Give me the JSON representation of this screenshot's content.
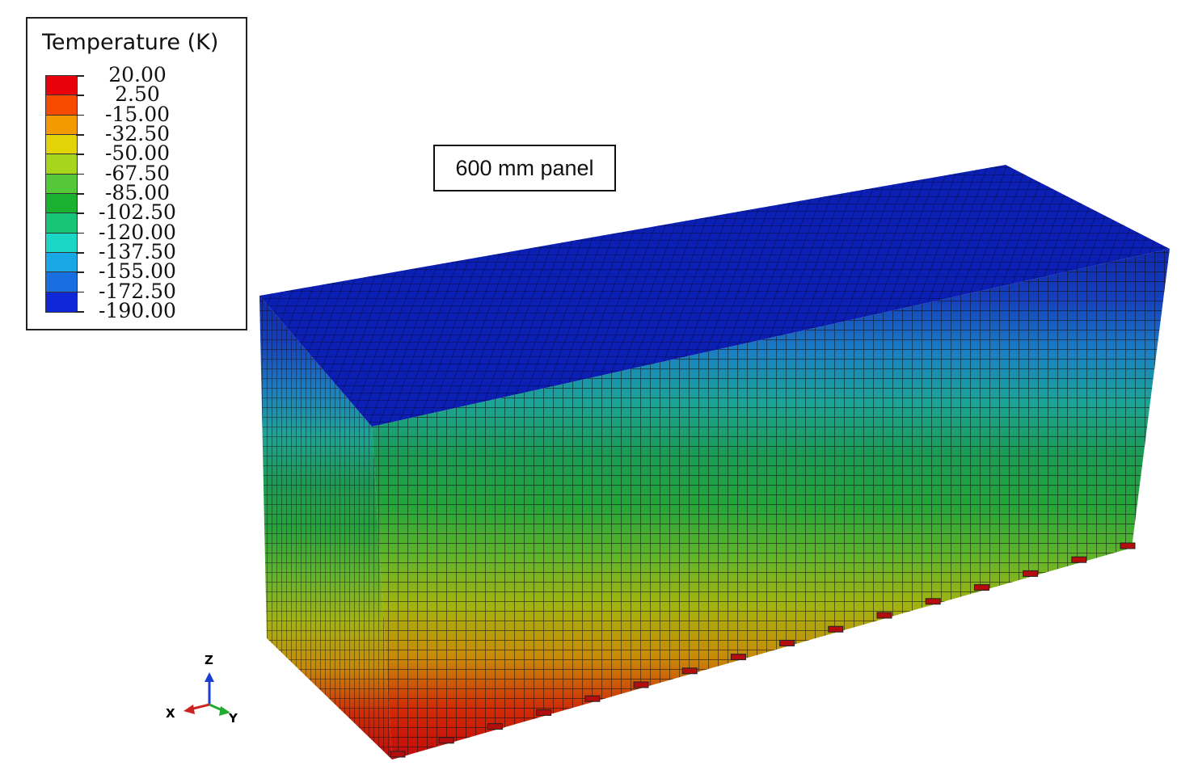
{
  "legend": {
    "title": "Temperature (K)",
    "values": [
      "20.00",
      "2.50",
      "-15.00",
      "-32.50",
      "-50.00",
      "-67.50",
      "-85.00",
      "-102.50",
      "-120.00",
      "-137.50",
      "-155.00",
      "-172.50",
      "-190.00"
    ],
    "colors": [
      "#e8000b",
      "#f54a00",
      "#f29a00",
      "#e3d40a",
      "#a7d51c",
      "#55c83a",
      "#19b12f",
      "#17c477",
      "#1ad7c6",
      "#19a8e6",
      "#1a6fe0",
      "#1027d8"
    ]
  },
  "panel_label": "600 mm panel",
  "triad": {
    "x_label": "X",
    "y_label": "Y",
    "z_label": "Z",
    "x_color": "#cc2222",
    "y_color": "#22aa33",
    "z_color": "#1a3fd0"
  },
  "model": {
    "description_colors": {
      "top": "#0c1fb4",
      "gradient_bottom_to_top": [
        "#c40a0a",
        "#d22a06",
        "#c98a06",
        "#a3b40e",
        "#5fb52a",
        "#23a53a",
        "#1a9c55",
        "#1aa596",
        "#1a7fc4",
        "#1540c0",
        "#0f28b0"
      ]
    }
  }
}
